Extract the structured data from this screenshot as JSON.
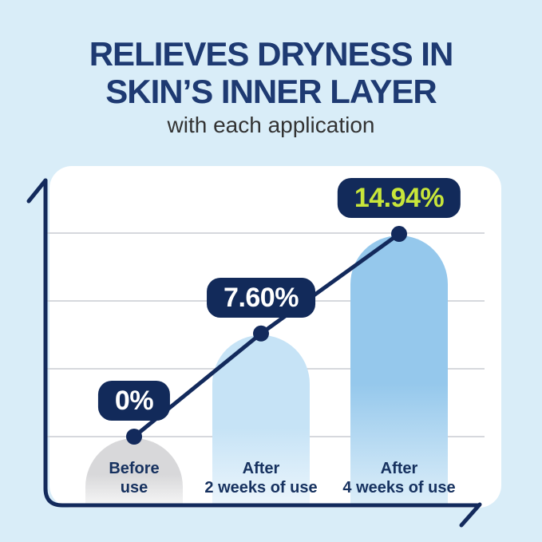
{
  "header": {
    "title_line1": "RELIEVES DRYNESS IN",
    "title_line2": "SKIN’S INNER LAYER",
    "subtitle": "with each application"
  },
  "chart_data": {
    "type": "bar",
    "title": "Relieves dryness in skin's inner layer with each application",
    "categories": [
      {
        "line1": "Before",
        "line2": "use"
      },
      {
        "line1": "After",
        "line2": "2 weeks of use"
      },
      {
        "line1": "After",
        "line2": "4 weeks of use"
      }
    ],
    "values": [
      0,
      7.6,
      14.94
    ],
    "value_labels": [
      "0%",
      "7.60%",
      "14.94%"
    ],
    "value_label_text_colors": [
      "#ffffff",
      "#ffffff",
      "#c8e63a"
    ],
    "ylabel": "",
    "xlabel": "",
    "ylim": [
      0,
      15
    ],
    "gridline_step": 5,
    "grid": true,
    "overlay_line": true,
    "legend_position": "none",
    "bar_gradients": [
      [
        "#d8d8da",
        "#f5f5f5"
      ],
      [
        "#c6e3f6",
        "#ebf5fc"
      ],
      [
        "#95c8ec",
        "#dceef9"
      ]
    ]
  },
  "colors": {
    "background": "#d9edf8",
    "panel": "#ffffff",
    "navy": "#132a5c",
    "badge_bg": "#122a5a",
    "title": "#1e3a72",
    "subtitle": "#333333",
    "gridline": "#c8ccd2",
    "accent_lime": "#c8e63a"
  }
}
